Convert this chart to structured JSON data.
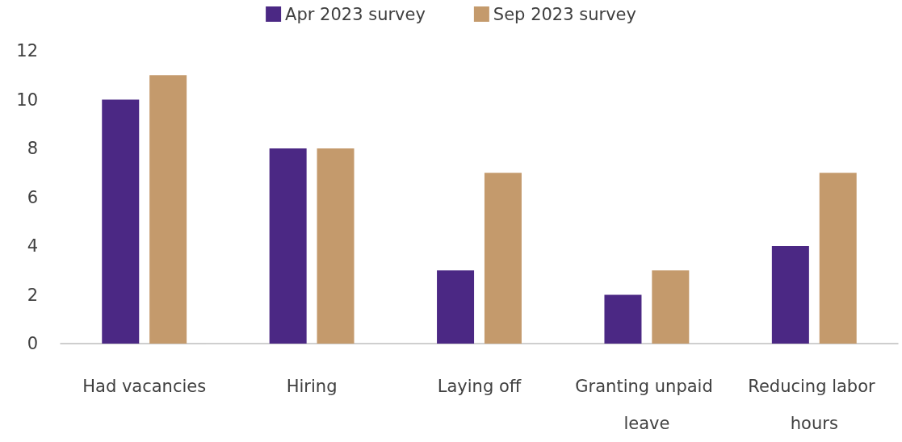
{
  "chart_data": {
    "type": "bar",
    "categories": [
      "Had vacancies",
      "Hiring",
      "Laying off",
      "Granting unpaid leave",
      "Reducing labor hours"
    ],
    "series": [
      {
        "name": "Apr 2023 survey",
        "color": "#4b2884",
        "values": [
          10,
          8,
          3,
          2,
          4
        ]
      },
      {
        "name": "Sep 2023 survey",
        "color": "#c49a6c",
        "values": [
          11,
          8,
          7,
          3,
          7
        ]
      }
    ],
    "ylim": [
      0,
      12
    ],
    "yticks": [
      0,
      2,
      4,
      6,
      8,
      10,
      12
    ],
    "grid": false,
    "legend": "top"
  }
}
